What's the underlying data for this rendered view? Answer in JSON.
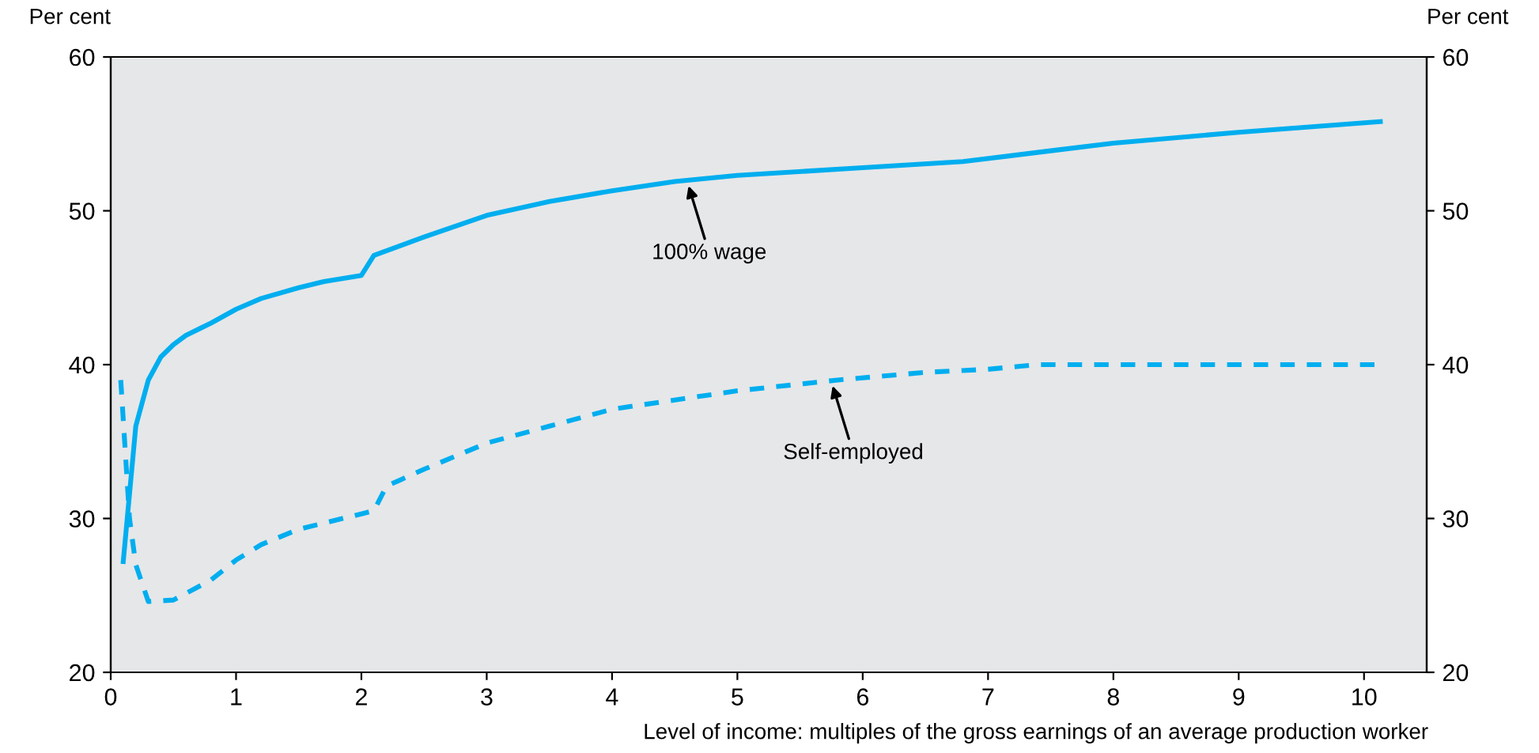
{
  "chart_data": {
    "type": "line",
    "xlabel": "Level of income: multiples of the gross earnings of an average production worker",
    "ylabel": "Per cent",
    "y2label": "Per cent",
    "series": [
      {
        "color": "#00aeef",
        "line_style": "solid",
        "x": [
          0.1,
          0.2,
          0.3,
          0.4,
          0.5,
          0.6,
          0.8,
          1.0,
          1.2,
          1.5,
          1.7,
          2.0,
          2.1,
          2.5,
          3.0,
          3.5,
          4.0,
          4.5,
          5.0,
          6.0,
          6.8,
          7.5,
          8.0,
          9.0,
          10.13
        ],
        "values": [
          27.2,
          36,
          39,
          40.5,
          41.3,
          41.9,
          42.7,
          43.6,
          44.3,
          45.0,
          45.4,
          45.8,
          47.1,
          48.3,
          49.7,
          50.6,
          51.3,
          51.9,
          52.3,
          52.8,
          53.2,
          53.9,
          54.4,
          55.1,
          55.8
        ]
      },
      {
        "color": "#00aeef",
        "line_style": "dashed",
        "x": [
          0.08,
          0.15,
          0.2,
          0.3,
          0.5,
          0.8,
          1.0,
          1.2,
          1.5,
          2.0,
          2.1,
          2.2,
          2.5,
          3.0,
          3.5,
          4.0,
          5.0,
          5.8,
          6.5,
          7.0,
          7.4,
          8.0,
          10.13
        ],
        "values": [
          39,
          30,
          27,
          24.6,
          24.7,
          26,
          27.3,
          28.3,
          29.3,
          30.3,
          30.5,
          32.1,
          33.2,
          34.9,
          36.0,
          37.1,
          38.3,
          39.0,
          39.5,
          39.7,
          40.0,
          40.0,
          40.0
        ]
      }
    ],
    "annotations": [
      {
        "text": "100% wage",
        "x": 4.6,
        "y": 51.9
      },
      {
        "text": "Self-employed",
        "x": 5.75,
        "y": 38.9
      }
    ],
    "xlim": [
      0,
      10.5
    ],
    "xticks": [
      0,
      1,
      2,
      3,
      4,
      5,
      6,
      7,
      8,
      9,
      10
    ],
    "ylim": [
      20,
      60
    ],
    "yticks": [
      20,
      30,
      40,
      50,
      60
    ],
    "y2lim": [
      20,
      60
    ],
    "y2ticks": [
      20,
      30,
      40,
      50,
      60
    ],
    "grid": false,
    "legend": false
  }
}
